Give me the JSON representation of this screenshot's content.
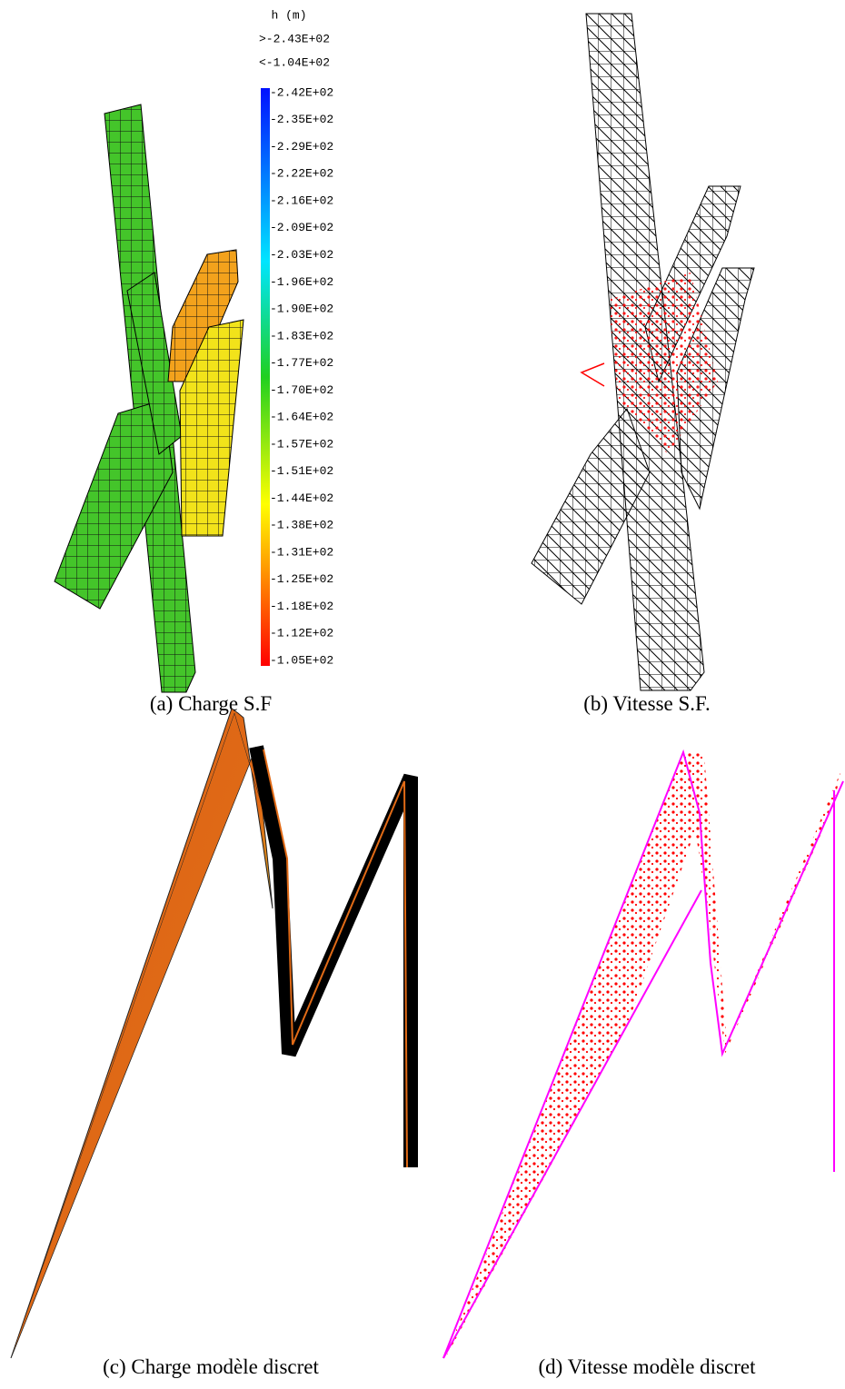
{
  "panels": [
    {
      "caption": "(a)  Charge S.F",
      "legend": {
        "title": "h (m)",
        "max_label": ">-2.43E+02",
        "min_label": "<-1.04E+02",
        "labels": [
          "-2.42E+02",
          "-2.35E+02",
          "-2.29E+02",
          "-2.22E+02",
          "-2.16E+02",
          "-2.09E+02",
          "-2.03E+02",
          "-1.96E+02",
          "-1.90E+02",
          "-1.83E+02",
          "-1.77E+02",
          "-1.70E+02",
          "-1.64E+02",
          "-1.57E+02",
          "-1.51E+02",
          "-1.44E+02",
          "-1.38E+02",
          "-1.31E+02",
          "-1.25E+02",
          "-1.18E+02",
          "-1.12E+02",
          "-1.05E+02"
        ]
      }
    },
    {
      "caption": "(b)  Vitesse S.F."
    },
    {
      "caption": "(c)  Charge modèle discret"
    },
    {
      "caption": "(d)  Vitesse modèle discret"
    }
  ]
}
